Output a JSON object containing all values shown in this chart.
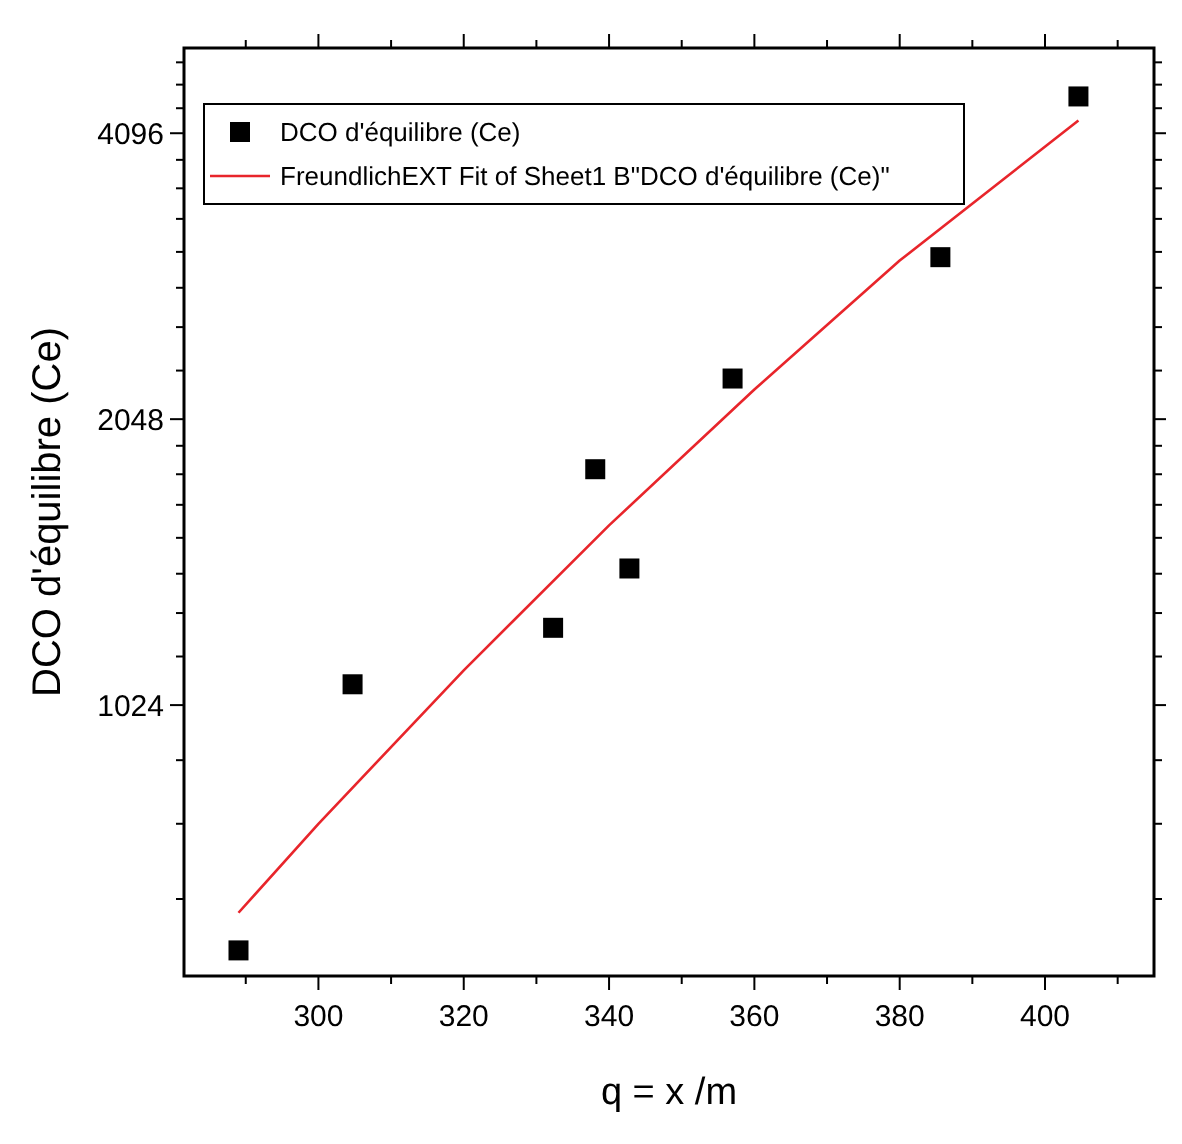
{
  "chart_data": {
    "type": "scatter",
    "xlabel": "q = x /m",
    "ylabel": "DCO d'équilibre (Ce)",
    "log": "y",
    "legend": "top left",
    "marker": "square",
    "xlim": [
      281.5,
      415
    ],
    "ylim": [
      531,
      5036
    ],
    "xticks": [
      {
        "value": 290,
        "label": null
      },
      300,
      {
        "value": 310,
        "label": null
      },
      320,
      {
        "value": 330,
        "label": null
      },
      340,
      {
        "value": 350,
        "label": null
      },
      360,
      {
        "value": 370,
        "label": null
      },
      380,
      {
        "value": 390,
        "label": null
      },
      400,
      {
        "value": 410,
        "label": null
      }
    ],
    "yticks": [
      {
        "value": 640,
        "label": null
      },
      {
        "value": 768,
        "label": null
      },
      {
        "value": 896,
        "label": null
      },
      1024,
      {
        "value": 1152,
        "label": null
      },
      {
        "value": 1280,
        "label": null
      },
      {
        "value": 1408,
        "label": null
      },
      {
        "value": 1536,
        "label": null
      },
      {
        "value": 1664,
        "label": null
      },
      {
        "value": 1792,
        "label": null
      },
      {
        "value": 1920,
        "label": null
      },
      2048,
      {
        "value": 2304,
        "label": null
      },
      {
        "value": 2560,
        "label": null
      },
      {
        "value": 2816,
        "label": null
      },
      {
        "value": 3072,
        "label": null
      },
      {
        "value": 3328,
        "label": null
      },
      {
        "value": 3584,
        "label": null
      },
      {
        "value": 3840,
        "label": null
      },
      4096,
      {
        "value": 4352,
        "label": null
      },
      {
        "value": 4608,
        "label": null
      },
      {
        "value": 4864,
        "label": null
      }
    ],
    "series": [
      {
        "name": "DCO d'équilibre (Ce)",
        "color": "#000000",
        "x": [
          289,
          304.7,
          332.3,
          342.8,
          338.1,
          357,
          385.6,
          404.6
        ],
        "values": [
          565,
          1077,
          1235,
          1426,
          1814,
          2260,
          3033,
          4478
        ]
      },
      {
        "type": "line",
        "name": "FreundlichEXT Fit of Sheet1 B\"DCO d'équilibre (Ce)\"",
        "color": "#e8252b",
        "marker": "none",
        "line_style": "solid",
        "x": [
          289,
          300,
          320,
          340,
          360,
          380,
          404.6
        ],
        "values": [
          619,
          768,
          1114,
          1583,
          2201,
          3008,
          4225
        ]
      }
    ]
  }
}
